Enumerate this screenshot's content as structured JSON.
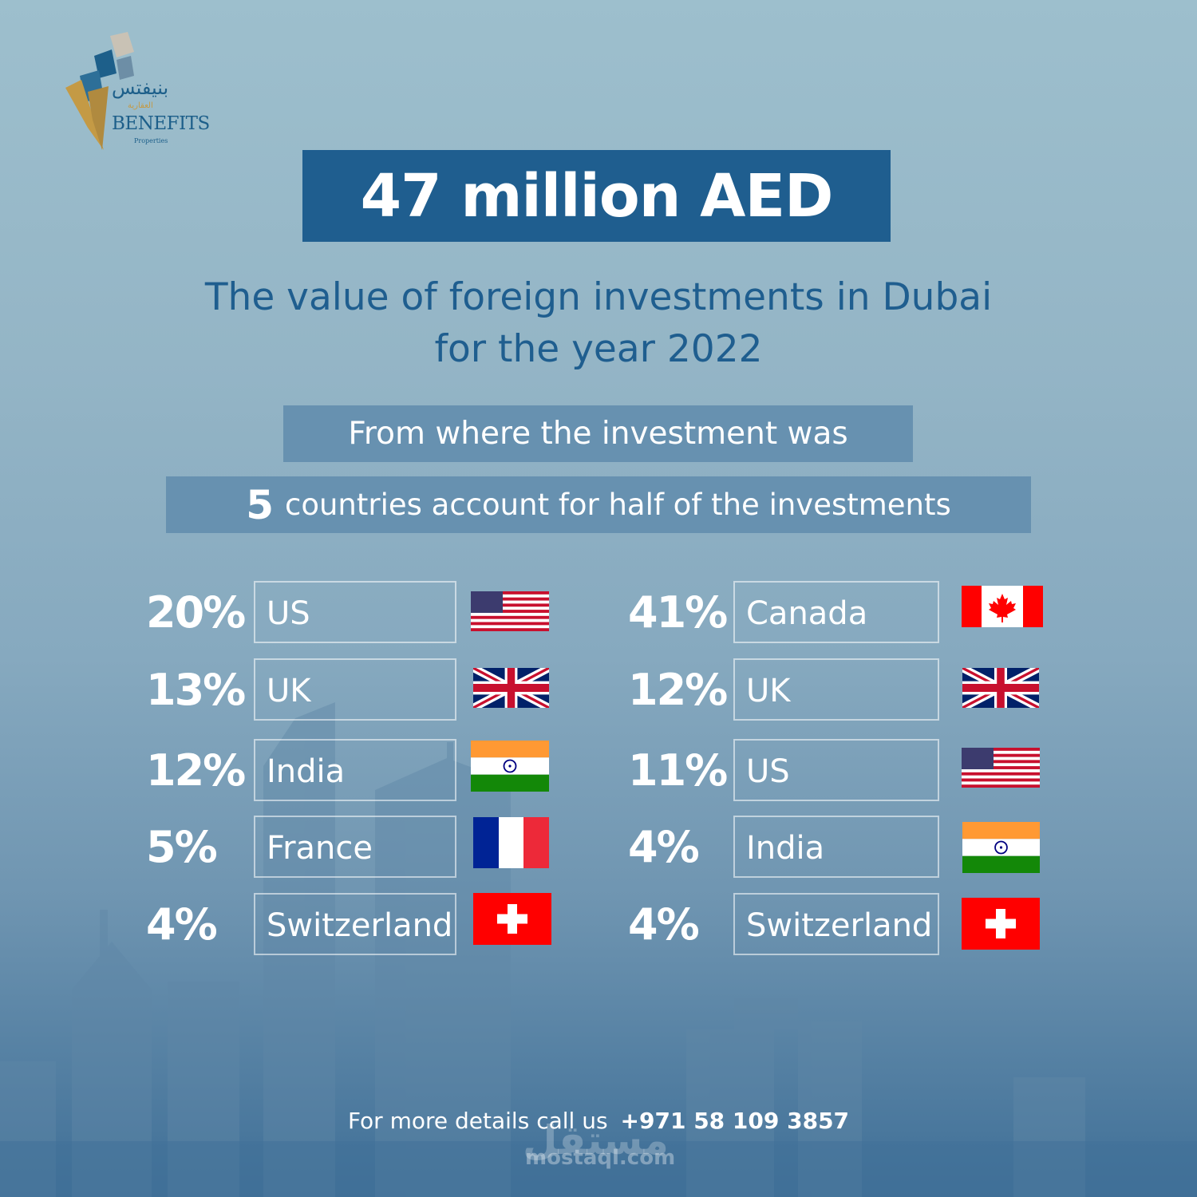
{
  "brand": {
    "name_ar": "بنيفتس",
    "name_ar_sub": "العقارية",
    "name_en": "BENEFITS",
    "name_en_sub": "Properties"
  },
  "headline": "47 million AED",
  "subtitle": {
    "line1": "The value of foreign investments in Dubai",
    "line2": "for the year 2022"
  },
  "section_label": "From where the investment was",
  "highlight": {
    "number": "5",
    "text": "countries account for half of the investments"
  },
  "left_list": [
    {
      "percent": "20%",
      "country": "US",
      "flag": "us-flag-icon"
    },
    {
      "percent": "13%",
      "country": "UK",
      "flag": "uk-flag-icon"
    },
    {
      "percent": "12%",
      "country": "India",
      "flag": "india-flag-icon"
    },
    {
      "percent": "5%",
      "country": "France",
      "flag": "france-flag-icon"
    },
    {
      "percent": "4%",
      "country": "Switzerland",
      "flag": "switzerland-flag-icon"
    }
  ],
  "right_list": [
    {
      "percent": "41%",
      "country": "Canada",
      "flag": "canada-flag-icon"
    },
    {
      "percent": "12%",
      "country": "UK",
      "flag": "uk-flag-icon"
    },
    {
      "percent": "11%",
      "country": "US",
      "flag": "us-flag-icon"
    },
    {
      "percent": "4%",
      "country": "India",
      "flag": "india-flag-icon"
    },
    {
      "percent": "4%",
      "country": "Switzerland",
      "flag": "switzerland-flag-icon"
    }
  ],
  "footer": {
    "text": "For more details call us",
    "phone": "+971 58 109 3857"
  },
  "watermark": {
    "ar": "مستقل",
    "en": "mostaql.com"
  },
  "colors": {
    "primary_blue": "#1f5e8f",
    "label_blue": "#6791b0",
    "gold": "#c49a45"
  }
}
